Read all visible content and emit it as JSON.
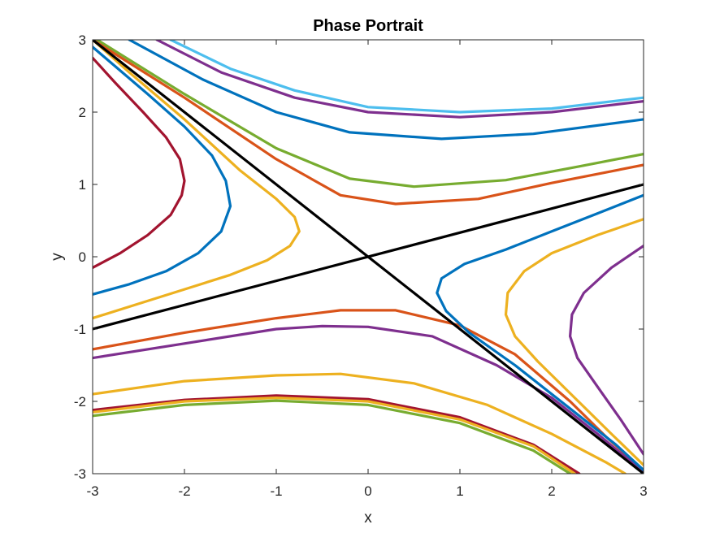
{
  "chart_data": {
    "type": "line",
    "title": "Phase Portrait",
    "xlabel": "x",
    "ylabel": "y",
    "xlim": [
      -3,
      3
    ],
    "ylim": [
      -3,
      3
    ],
    "xticks": [
      -3,
      -2,
      -1,
      0,
      1,
      2,
      3
    ],
    "yticks": [
      -3,
      -2,
      -1,
      0,
      1,
      2,
      3
    ],
    "xtick_labels": [
      "-3",
      "-2",
      "-1",
      "0",
      "1",
      "2",
      "3"
    ],
    "ytick_labels": [
      "-3",
      "-2",
      "-1",
      "0",
      "1",
      "2",
      "3"
    ],
    "grid": false,
    "box": true,
    "line_width": 3.2,
    "series": [
      {
        "color": "#A2142F",
        "points": [
          [
            -3.0,
            -0.15
          ],
          [
            -2.7,
            0.05
          ],
          [
            -2.4,
            0.3
          ],
          [
            -2.15,
            0.58
          ],
          [
            -2.03,
            0.85
          ],
          [
            -2.0,
            1.05
          ],
          [
            -2.05,
            1.35
          ],
          [
            -2.2,
            1.65
          ],
          [
            -2.45,
            2.0
          ],
          [
            -2.75,
            2.4
          ],
          [
            -3.0,
            2.75
          ]
        ]
      },
      {
        "color": "#0072BD",
        "points": [
          [
            -3.0,
            -0.52
          ],
          [
            -2.6,
            -0.38
          ],
          [
            -2.2,
            -0.2
          ],
          [
            -1.85,
            0.05
          ],
          [
            -1.6,
            0.35
          ],
          [
            -1.5,
            0.7
          ],
          [
            -1.55,
            1.05
          ],
          [
            -1.7,
            1.4
          ],
          [
            -2.0,
            1.8
          ],
          [
            -2.4,
            2.25
          ],
          [
            -3.0,
            2.9
          ]
        ]
      },
      {
        "color": "#EDB120",
        "points": [
          [
            -3.0,
            -0.85
          ],
          [
            -2.5,
            -0.65
          ],
          [
            -2.0,
            -0.45
          ],
          [
            -1.5,
            -0.25
          ],
          [
            -1.1,
            -0.05
          ],
          [
            -0.85,
            0.15
          ],
          [
            -0.75,
            0.35
          ],
          [
            -0.8,
            0.55
          ],
          [
            -1.0,
            0.8
          ],
          [
            -1.4,
            1.2
          ],
          [
            -2.0,
            1.9
          ],
          [
            -2.6,
            2.55
          ],
          [
            -3.0,
            3.0
          ]
        ]
      },
      {
        "color": "#D95319",
        "points": [
          [
            -3.0,
            -1.28
          ],
          [
            -2.0,
            -1.05
          ],
          [
            -1.0,
            -0.85
          ],
          [
            -0.3,
            -0.74
          ],
          [
            0.3,
            -0.74
          ],
          [
            1.0,
            -0.95
          ],
          [
            1.6,
            -1.35
          ],
          [
            2.2,
            -2.0
          ],
          [
            2.6,
            -2.5
          ],
          [
            3.0,
            -2.95
          ]
        ]
      },
      {
        "color": "#7E2F8E",
        "points": [
          [
            -3.0,
            -1.4
          ],
          [
            -2.0,
            -1.2
          ],
          [
            -1.0,
            -1.0
          ],
          [
            -0.5,
            -0.96
          ],
          [
            0.0,
            -0.97
          ],
          [
            0.7,
            -1.1
          ],
          [
            1.4,
            -1.5
          ],
          [
            2.0,
            -1.95
          ],
          [
            2.5,
            -2.45
          ],
          [
            3.0,
            -2.98
          ]
        ]
      },
      {
        "color": "#EDB120",
        "points": [
          [
            -3.0,
            -1.9
          ],
          [
            -2.0,
            -1.72
          ],
          [
            -1.0,
            -1.64
          ],
          [
            -0.3,
            -1.62
          ],
          [
            0.5,
            -1.75
          ],
          [
            1.3,
            -2.05
          ],
          [
            2.0,
            -2.45
          ],
          [
            2.6,
            -2.85
          ],
          [
            2.8,
            -3.0
          ]
        ]
      },
      {
        "color": "#A2142F",
        "points": [
          [
            -3.0,
            -2.12
          ],
          [
            -2.0,
            -1.98
          ],
          [
            -1.0,
            -1.92
          ],
          [
            0.0,
            -1.97
          ],
          [
            1.0,
            -2.22
          ],
          [
            1.8,
            -2.6
          ],
          [
            2.3,
            -3.0
          ]
        ]
      },
      {
        "color": "#EDB120",
        "points": [
          [
            -3.0,
            -2.15
          ],
          [
            -2.0,
            -2.0
          ],
          [
            -1.0,
            -1.95
          ],
          [
            0.0,
            -2.0
          ],
          [
            1.0,
            -2.25
          ],
          [
            1.8,
            -2.62
          ],
          [
            2.25,
            -3.0
          ]
        ]
      },
      {
        "color": "#77AC30",
        "points": [
          [
            -3.0,
            -2.2
          ],
          [
            -2.0,
            -2.05
          ],
          [
            -1.0,
            -1.99
          ],
          [
            0.0,
            -2.05
          ],
          [
            1.0,
            -2.3
          ],
          [
            1.8,
            -2.68
          ],
          [
            2.2,
            -3.0
          ]
        ]
      },
      {
        "color": "#0072BD",
        "points": [
          [
            3.0,
            0.85
          ],
          [
            2.5,
            0.6
          ],
          [
            2.0,
            0.35
          ],
          [
            1.5,
            0.1
          ],
          [
            1.05,
            -0.1
          ],
          [
            0.8,
            -0.3
          ],
          [
            0.75,
            -0.5
          ],
          [
            0.85,
            -0.75
          ],
          [
            1.1,
            -1.05
          ],
          [
            1.6,
            -1.5
          ],
          [
            2.2,
            -2.1
          ],
          [
            2.7,
            -2.6
          ],
          [
            3.0,
            -2.95
          ]
        ]
      },
      {
        "color": "#EDB120",
        "points": [
          [
            3.0,
            0.52
          ],
          [
            2.5,
            0.3
          ],
          [
            2.0,
            0.05
          ],
          [
            1.7,
            -0.2
          ],
          [
            1.52,
            -0.5
          ],
          [
            1.5,
            -0.8
          ],
          [
            1.6,
            -1.1
          ],
          [
            1.85,
            -1.45
          ],
          [
            2.25,
            -1.95
          ],
          [
            2.65,
            -2.45
          ],
          [
            3.0,
            -2.88
          ]
        ]
      },
      {
        "color": "#7E2F8E",
        "points": [
          [
            3.0,
            0.15
          ],
          [
            2.65,
            -0.15
          ],
          [
            2.35,
            -0.5
          ],
          [
            2.22,
            -0.8
          ],
          [
            2.2,
            -1.1
          ],
          [
            2.28,
            -1.4
          ],
          [
            2.5,
            -1.8
          ],
          [
            2.75,
            -2.25
          ],
          [
            3.0,
            -2.73
          ]
        ]
      },
      {
        "color": "#4DBEEE",
        "points": [
          [
            -2.15,
            3.0
          ],
          [
            -1.5,
            2.6
          ],
          [
            -0.8,
            2.3
          ],
          [
            0.0,
            2.07
          ],
          [
            1.0,
            2.0
          ],
          [
            2.0,
            2.05
          ],
          [
            3.0,
            2.2
          ]
        ]
      },
      {
        "color": "#7E2F8E",
        "points": [
          [
            -2.3,
            3.0
          ],
          [
            -1.6,
            2.55
          ],
          [
            -0.8,
            2.2
          ],
          [
            0.0,
            2.0
          ],
          [
            1.0,
            1.93
          ],
          [
            2.0,
            2.0
          ],
          [
            3.0,
            2.15
          ]
        ]
      },
      {
        "color": "#0072BD",
        "points": [
          [
            -2.6,
            3.0
          ],
          [
            -1.8,
            2.45
          ],
          [
            -1.0,
            2.0
          ],
          [
            -0.2,
            1.72
          ],
          [
            0.8,
            1.63
          ],
          [
            1.8,
            1.7
          ],
          [
            3.0,
            1.9
          ]
        ]
      },
      {
        "color": "#77AC30",
        "points": [
          [
            -2.95,
            3.0
          ],
          [
            -2.0,
            2.25
          ],
          [
            -1.0,
            1.5
          ],
          [
            -0.2,
            1.08
          ],
          [
            0.5,
            0.97
          ],
          [
            1.5,
            1.06
          ],
          [
            2.3,
            1.25
          ],
          [
            3.0,
            1.42
          ]
        ]
      },
      {
        "color": "#D95319",
        "points": [
          [
            -3.0,
            3.0
          ],
          [
            -2.0,
            2.2
          ],
          [
            -1.0,
            1.35
          ],
          [
            -0.3,
            0.85
          ],
          [
            0.3,
            0.73
          ],
          [
            1.2,
            0.8
          ],
          [
            2.0,
            1.02
          ],
          [
            3.0,
            1.27
          ]
        ]
      },
      {
        "color": "#000000",
        "points": [
          [
            -3.0,
            -1.0
          ],
          [
            3.0,
            1.0
          ]
        ]
      },
      {
        "color": "#000000",
        "points": [
          [
            -3.0,
            3.0
          ],
          [
            3.0,
            -3.0
          ]
        ]
      }
    ]
  }
}
